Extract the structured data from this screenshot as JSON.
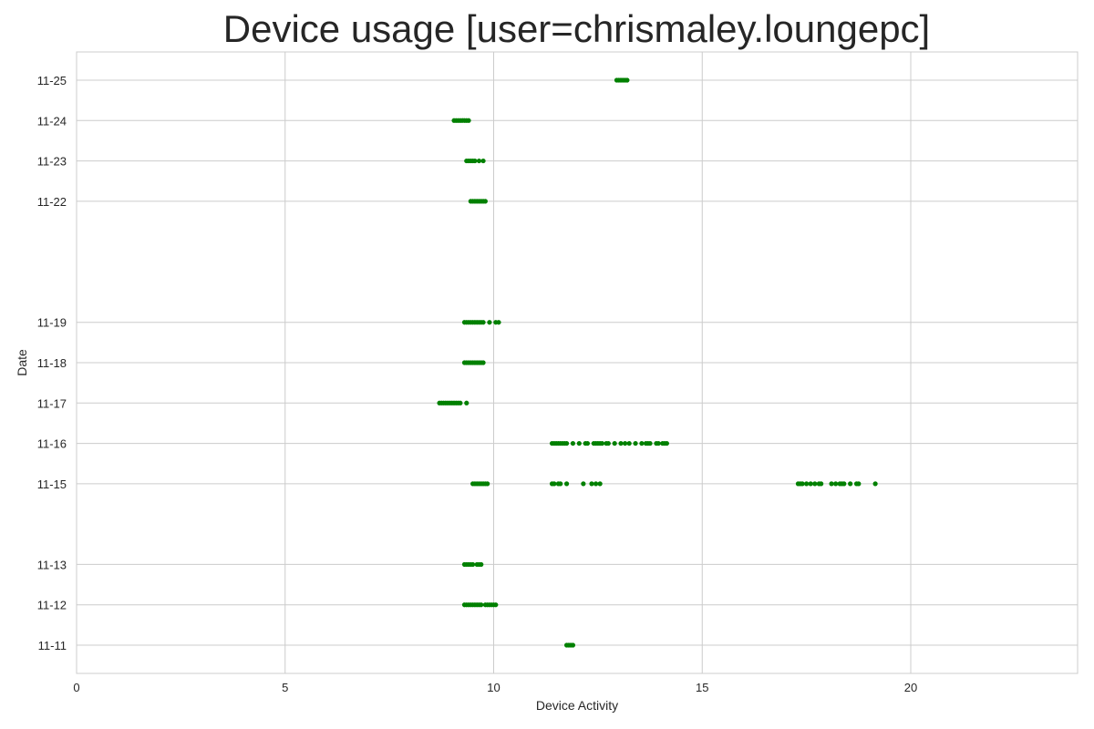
{
  "chart_data": {
    "type": "scatter",
    "title": "Device usage [user=chrismaley.loungepc]",
    "xlabel": "Device Activity",
    "ylabel": "Date",
    "xlim": [
      0,
      24
    ],
    "x_ticks": [
      0,
      5,
      10,
      15,
      20
    ],
    "y_date_range": [
      "11-11",
      "11-25"
    ],
    "y_ticks": [
      "11-11",
      "11-12",
      "11-13",
      "11-15",
      "11-16",
      "11-17",
      "11-18",
      "11-19",
      "11-22",
      "11-23",
      "11-24",
      "11-25"
    ],
    "grid": true,
    "marker_color": "#008000",
    "series": [
      {
        "points": [
          {
            "date": "11-11",
            "x": [
              11.75,
              11.8,
              11.85,
              11.9
            ]
          },
          {
            "date": "11-12",
            "x": [
              9.3,
              9.35,
              9.4,
              9.45,
              9.5,
              9.55,
              9.6,
              9.65,
              9.7,
              9.8,
              9.85,
              9.9,
              9.95,
              10.0,
              10.05
            ]
          },
          {
            "date": "11-13",
            "x": [
              9.3,
              9.35,
              9.4,
              9.45,
              9.5,
              9.6,
              9.65,
              9.7
            ]
          },
          {
            "date": "11-15",
            "x": [
              9.5,
              9.55,
              9.6,
              9.65,
              9.7,
              9.75,
              9.8,
              9.85,
              11.4,
              11.45,
              11.55,
              11.6,
              11.75,
              12.15,
              12.35,
              12.45,
              12.55,
              17.3,
              17.35,
              17.4,
              17.5,
              17.6,
              17.7,
              17.8,
              17.85,
              18.1,
              18.2,
              18.3,
              18.35,
              18.4,
              18.55,
              18.7,
              18.75,
              19.15
            ]
          },
          {
            "date": "11-16",
            "x": [
              11.4,
              11.45,
              11.5,
              11.55,
              11.6,
              11.65,
              11.7,
              11.75,
              11.9,
              12.05,
              12.2,
              12.25,
              12.4,
              12.45,
              12.5,
              12.55,
              12.6,
              12.7,
              12.75,
              12.9,
              13.05,
              13.15,
              13.25,
              13.4,
              13.55,
              13.65,
              13.7,
              13.75,
              13.9,
              13.95,
              14.05,
              14.1,
              14.15
            ]
          },
          {
            "date": "11-17",
            "x": [
              8.7,
              8.75,
              8.8,
              8.85,
              8.9,
              8.95,
              9.0,
              9.05,
              9.1,
              9.15,
              9.2,
              9.35
            ]
          },
          {
            "date": "11-18",
            "x": [
              9.3,
              9.35,
              9.4,
              9.45,
              9.5,
              9.55,
              9.6,
              9.65,
              9.7,
              9.75
            ]
          },
          {
            "date": "11-19",
            "x": [
              9.3,
              9.35,
              9.4,
              9.45,
              9.5,
              9.55,
              9.6,
              9.65,
              9.7,
              9.75,
              9.9,
              10.05,
              10.12
            ]
          },
          {
            "date": "11-22",
            "x": [
              9.45,
              9.5,
              9.55,
              9.6,
              9.65,
              9.7,
              9.75,
              9.8
            ]
          },
          {
            "date": "11-23",
            "x": [
              9.35,
              9.4,
              9.45,
              9.5,
              9.55,
              9.65,
              9.75
            ]
          },
          {
            "date": "11-24",
            "x": [
              9.05,
              9.1,
              9.15,
              9.2,
              9.25,
              9.3,
              9.35,
              9.4
            ]
          },
          {
            "date": "11-25",
            "x": [
              12.95,
              13.0,
              13.05,
              13.1,
              13.15,
              13.2
            ]
          }
        ]
      }
    ]
  }
}
